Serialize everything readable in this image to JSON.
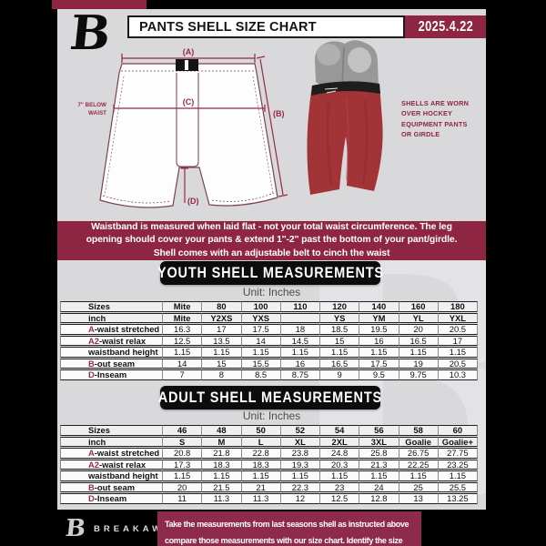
{
  "header": {
    "logo_letter": "B",
    "title": "PANTS SHELL SIZE CHART",
    "date": "2025.4.22"
  },
  "diagram": {
    "label_a": "(A)",
    "label_b": "(B)",
    "label_c": "(C)",
    "label_d": "(D)",
    "waist_note_line1": "7'' BELOW",
    "waist_note_line2": "WAIST",
    "photo_caption": [
      "SHELLS ARE WORN",
      "OVER HOCKEY",
      "EQUIPMENT PANTS",
      "OR GIRDLE"
    ]
  },
  "info_band": {
    "lines": [
      "Waistband is measured when laid flat - not your total waist circumference. The leg",
      "opening should cover your pants & extend 1''-2'' past the bottom of your pant/girdle.",
      "Shell comes with an adjustable belt to cinch the waist"
    ]
  },
  "youth": {
    "banner": "YOUTH SHELL MEASUREMENTS",
    "unit": "Unit: Inches",
    "table": {
      "rows": [
        {
          "prefix": "",
          "label": "Sizes",
          "header": true,
          "values": [
            "Mite",
            "80",
            "100",
            "110",
            "120",
            "140",
            "160",
            "180"
          ]
        },
        {
          "prefix": "",
          "label": "inch",
          "header": true,
          "values": [
            "Mite",
            "Y2XS",
            "YXS",
            "",
            "YS",
            "YM",
            "YL",
            "YXL"
          ]
        },
        {
          "prefix": "A",
          "label": "-waist stretched",
          "header": false,
          "values": [
            "16.3",
            "17",
            "17.5",
            "18",
            "18.5",
            "19.5",
            "20",
            "20.5"
          ]
        },
        {
          "prefix": "A2",
          "label": "-waist relax",
          "header": false,
          "values": [
            "12.5",
            "13.5",
            "14",
            "14.5",
            "15",
            "16",
            "16.5",
            "17"
          ]
        },
        {
          "prefix": "",
          "label": "waistband height",
          "header": false,
          "values": [
            "1.15",
            "1.15",
            "1.15",
            "1.15",
            "1.15",
            "1.15",
            "1.15",
            "1.15"
          ]
        },
        {
          "prefix": "B",
          "label": "-out seam",
          "header": false,
          "values": [
            "14",
            "15",
            "15.5",
            "16",
            "16.5",
            "17.5",
            "19",
            "20.5"
          ]
        },
        {
          "prefix": "D",
          "label": "-Inseam",
          "header": false,
          "values": [
            "7",
            "8",
            "8.5",
            "8.75",
            "9",
            "9.5",
            "9.75",
            "10.3"
          ]
        }
      ]
    }
  },
  "adult": {
    "banner": "ADULT SHELL MEASUREMENTS",
    "unit": "Unit: Inches",
    "table": {
      "rows": [
        {
          "prefix": "",
          "label": "Sizes",
          "header": true,
          "values": [
            "46",
            "48",
            "50",
            "52",
            "54",
            "56",
            "58",
            "60"
          ]
        },
        {
          "prefix": "",
          "label": "inch",
          "header": true,
          "values": [
            "S",
            "M",
            "L",
            "XL",
            "2XL",
            "3XL",
            "Goalie",
            "Goalie+"
          ]
        },
        {
          "prefix": "A",
          "label": "-waist stretched",
          "header": false,
          "values": [
            "20.8",
            "21.8",
            "22.8",
            "23.8",
            "24.8",
            "25.8",
            "26.75",
            "27.75"
          ]
        },
        {
          "prefix": "A2",
          "label": "-waist relax",
          "header": false,
          "values": [
            "17.3",
            "18.3",
            "18.3",
            "19.3",
            "20.3",
            "21.3",
            "22.25",
            "23.25"
          ]
        },
        {
          "prefix": "",
          "label": "waistband height",
          "header": false,
          "values": [
            "1.15",
            "1.15",
            "1.15",
            "1.15",
            "1.15",
            "1.15",
            "1.15",
            "1.15"
          ]
        },
        {
          "prefix": "B",
          "label": "-out seam",
          "header": false,
          "values": [
            "20",
            "21.5",
            "21",
            "22.3",
            "23",
            "24",
            "25",
            "25.5"
          ]
        },
        {
          "prefix": "D",
          "label": "-Inseam",
          "header": false,
          "values": [
            "11",
            "11.3",
            "11.3",
            "12",
            "12.5",
            "12.8",
            "13",
            "13.25"
          ]
        }
      ]
    }
  },
  "footer": {
    "brand": "BREAKAWAY",
    "note_lines": [
      "Take the measurements from last seasons shell as instructed above",
      "compare those measurements  with our size chart. Identify the size",
      "on the chart, if you need a larger size move up the scale on the chart"
    ]
  },
  "colors": {
    "maroon": "#8e2543",
    "page_gray": "#d9d9dc",
    "banner_black": "#0c0c0c",
    "shell_red": "#a23336"
  }
}
